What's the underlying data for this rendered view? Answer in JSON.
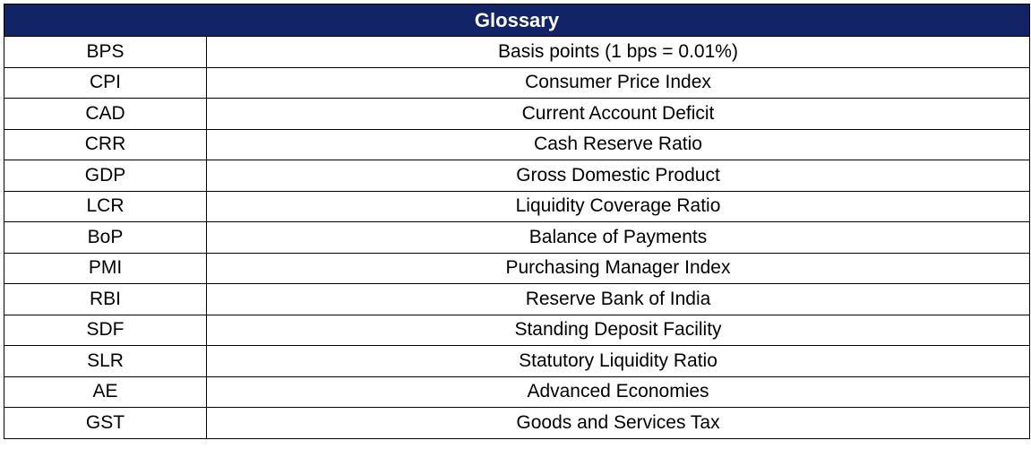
{
  "glossary": {
    "title": "Glossary",
    "rows": [
      {
        "term": "BPS",
        "definition": "Basis points (1 bps = 0.01%)"
      },
      {
        "term": "CPI",
        "definition": "Consumer Price Index"
      },
      {
        "term": "CAD",
        "definition": "Current Account Deficit"
      },
      {
        "term": "CRR",
        "definition": "Cash Reserve Ratio"
      },
      {
        "term": "GDP",
        "definition": "Gross Domestic Product"
      },
      {
        "term": "LCR",
        "definition": "Liquidity Coverage Ratio"
      },
      {
        "term": "BoP",
        "definition": "Balance of Payments"
      },
      {
        "term": "PMI",
        "definition": "Purchasing Manager Index"
      },
      {
        "term": "RBI",
        "definition": "Reserve Bank of India"
      },
      {
        "term": "SDF",
        "definition": "Standing Deposit Facility"
      },
      {
        "term": "SLR",
        "definition": "Statutory Liquidity Ratio"
      },
      {
        "term": "AE",
        "definition": "Advanced Economies"
      },
      {
        "term": "GST",
        "definition": "Goods and Services Tax"
      }
    ]
  },
  "colors": {
    "header_background": "#132466",
    "header_text": "#ffffff",
    "border": "#000000"
  }
}
